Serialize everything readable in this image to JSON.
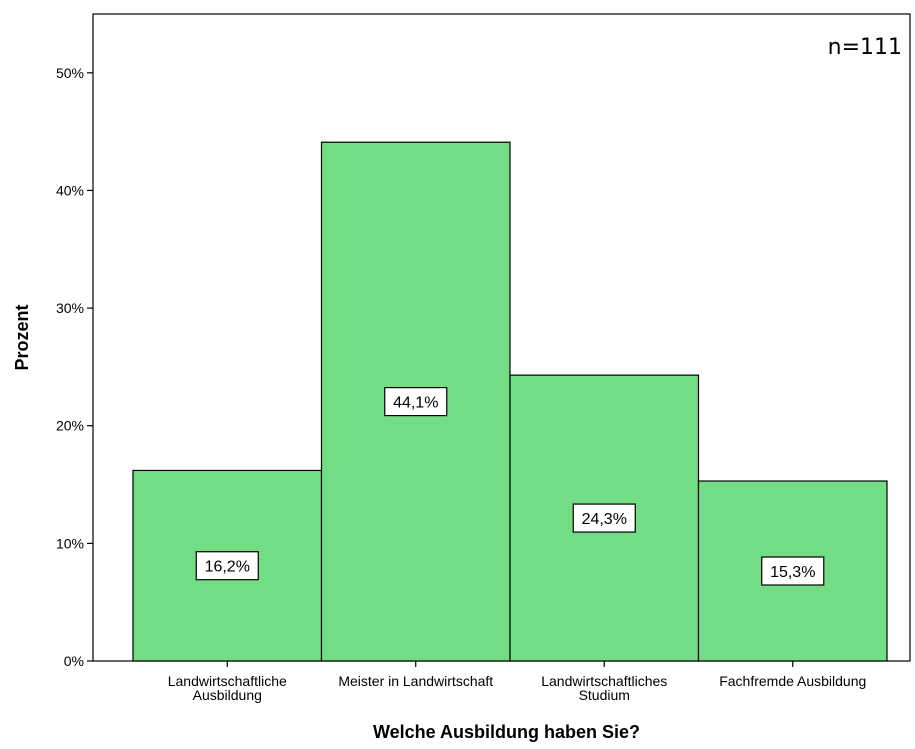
{
  "chart_data": {
    "type": "bar",
    "categories": [
      [
        "Landwirtschaftliche",
        "Ausbildung"
      ],
      [
        "Meister in Landwirtschaft"
      ],
      [
        "Landwirtschaftliches",
        "Studium"
      ],
      [
        "Fachfremde Ausbildung"
      ]
    ],
    "values": [
      16.2,
      44.1,
      24.3,
      15.3
    ],
    "data_labels": [
      "16,2%",
      "44,1%",
      "24,3%",
      "15,3%"
    ],
    "ylabel": "Prozent",
    "xlabel": "Welche Ausbildung haben Sie?",
    "ylim": [
      0,
      55
    ],
    "yticks": [
      0,
      10,
      20,
      30,
      40,
      50
    ],
    "ytick_labels": [
      "0%",
      "10%",
      "20%",
      "30%",
      "40%",
      "50%"
    ],
    "annotation": "n=111",
    "grid": false,
    "bar_color": "#72dd84"
  }
}
